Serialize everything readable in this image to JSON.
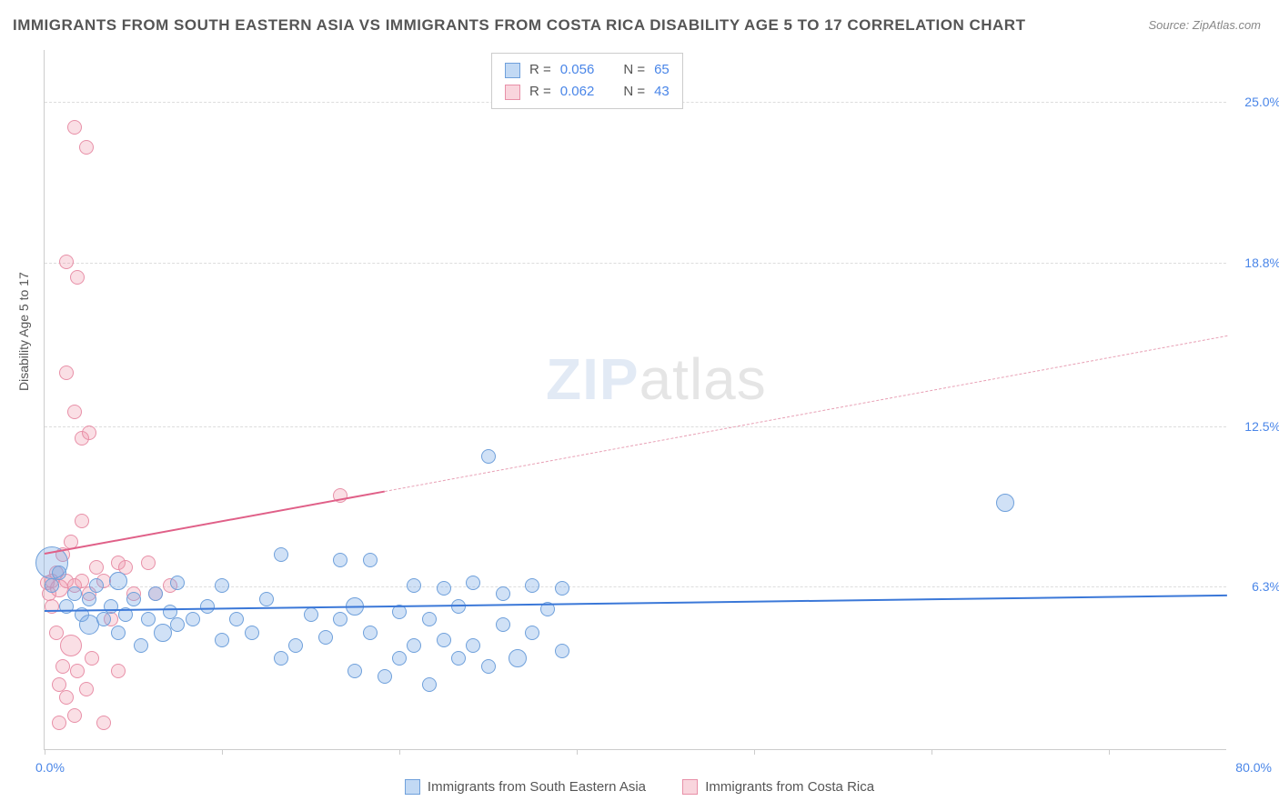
{
  "title": "IMMIGRANTS FROM SOUTH EASTERN ASIA VS IMMIGRANTS FROM COSTA RICA DISABILITY AGE 5 TO 17 CORRELATION CHART",
  "source": "Source: ZipAtlas.com",
  "ylabel": "Disability Age 5 to 17",
  "watermark_a": "ZIP",
  "watermark_b": "atlas",
  "chart": {
    "type": "scatter",
    "xlim": [
      0,
      80
    ],
    "ylim": [
      0,
      27
    ],
    "xlim_labels": [
      "0.0%",
      "80.0%"
    ],
    "ytick_values": [
      6.3,
      12.5,
      18.8,
      25.0
    ],
    "ytick_labels": [
      "6.3%",
      "12.5%",
      "18.8%",
      "25.0%"
    ],
    "xtick_positions": [
      0,
      12,
      24,
      36,
      48,
      60,
      72
    ],
    "background_color": "#ffffff",
    "grid_color": "#dddddd",
    "axis_color": "#cccccc",
    "tick_label_color": "#4a86e8",
    "point_radius": 8,
    "large_point_radius": 18
  },
  "legend_top": {
    "r_label": "R =",
    "n_label": "N =",
    "series_a": {
      "r": "0.056",
      "n": "65"
    },
    "series_b": {
      "r": "0.062",
      "n": "43"
    }
  },
  "legend_bottom": {
    "series_a": "Immigrants from South Eastern Asia",
    "series_b": "Immigrants from Costa Rica"
  },
  "series_a": {
    "color_fill": "rgba(120,170,230,0.35)",
    "color_stroke": "#6fa0db",
    "trend_color": "#3b78d8",
    "trend": {
      "x1": 0,
      "y1": 5.4,
      "x2": 80,
      "y2": 6.0
    },
    "points": [
      {
        "x": 0.5,
        "y": 7.2,
        "r": 18
      },
      {
        "x": 0.5,
        "y": 6.3
      },
      {
        "x": 1,
        "y": 6.8
      },
      {
        "x": 1.5,
        "y": 5.5
      },
      {
        "x": 2,
        "y": 6.0
      },
      {
        "x": 2.5,
        "y": 5.2
      },
      {
        "x": 3,
        "y": 5.8
      },
      {
        "x": 3,
        "y": 4.8,
        "r": 11
      },
      {
        "x": 3.5,
        "y": 6.3
      },
      {
        "x": 4,
        "y": 5.0
      },
      {
        "x": 4.5,
        "y": 5.5
      },
      {
        "x": 5,
        "y": 4.5
      },
      {
        "x": 5,
        "y": 6.5,
        "r": 10
      },
      {
        "x": 5.5,
        "y": 5.2
      },
      {
        "x": 6,
        "y": 5.8
      },
      {
        "x": 6.5,
        "y": 4.0
      },
      {
        "x": 7,
        "y": 5.0
      },
      {
        "x": 7.5,
        "y": 6.0
      },
      {
        "x": 8,
        "y": 4.5,
        "r": 10
      },
      {
        "x": 8.5,
        "y": 5.3
      },
      {
        "x": 9,
        "y": 4.8
      },
      {
        "x": 9,
        "y": 6.4
      },
      {
        "x": 10,
        "y": 5.0
      },
      {
        "x": 11,
        "y": 5.5
      },
      {
        "x": 12,
        "y": 4.2
      },
      {
        "x": 12,
        "y": 6.3
      },
      {
        "x": 13,
        "y": 5.0
      },
      {
        "x": 14,
        "y": 4.5
      },
      {
        "x": 15,
        "y": 5.8
      },
      {
        "x": 16,
        "y": 7.5
      },
      {
        "x": 16,
        "y": 3.5
      },
      {
        "x": 17,
        "y": 4.0
      },
      {
        "x": 18,
        "y": 5.2
      },
      {
        "x": 19,
        "y": 4.3
      },
      {
        "x": 20,
        "y": 7.3
      },
      {
        "x": 20,
        "y": 5.0
      },
      {
        "x": 21,
        "y": 3.0
      },
      {
        "x": 21,
        "y": 5.5,
        "r": 10
      },
      {
        "x": 22,
        "y": 4.5
      },
      {
        "x": 22,
        "y": 7.3
      },
      {
        "x": 23,
        "y": 2.8
      },
      {
        "x": 24,
        "y": 5.3
      },
      {
        "x": 24,
        "y": 3.5
      },
      {
        "x": 25,
        "y": 4.0
      },
      {
        "x": 25,
        "y": 6.3
      },
      {
        "x": 26,
        "y": 2.5
      },
      {
        "x": 26,
        "y": 5.0
      },
      {
        "x": 27,
        "y": 4.2
      },
      {
        "x": 27,
        "y": 6.2
      },
      {
        "x": 28,
        "y": 3.5
      },
      {
        "x": 28,
        "y": 5.5
      },
      {
        "x": 29,
        "y": 6.4
      },
      {
        "x": 29,
        "y": 4.0
      },
      {
        "x": 30,
        "y": 3.2
      },
      {
        "x": 30,
        "y": 11.3
      },
      {
        "x": 31,
        "y": 4.8
      },
      {
        "x": 31,
        "y": 6.0
      },
      {
        "x": 32,
        "y": 3.5,
        "r": 10
      },
      {
        "x": 33,
        "y": 6.3
      },
      {
        "x": 33,
        "y": 4.5
      },
      {
        "x": 34,
        "y": 5.4
      },
      {
        "x": 35,
        "y": 6.2
      },
      {
        "x": 35,
        "y": 3.8
      },
      {
        "x": 65,
        "y": 9.5,
        "r": 10
      }
    ]
  },
  "series_b": {
    "color_fill": "rgba(240,150,170,0.3)",
    "color_stroke": "#e890a8",
    "trend_color": "#e06088",
    "trend_solid": {
      "x1": 0,
      "y1": 7.6,
      "x2": 23,
      "y2": 10.0
    },
    "trend_dash": {
      "x1": 23,
      "y1": 10.0,
      "x2": 80,
      "y2": 16.0
    },
    "points": [
      {
        "x": 0.2,
        "y": 6.4
      },
      {
        "x": 0.3,
        "y": 6.0
      },
      {
        "x": 0.5,
        "y": 6.5
      },
      {
        "x": 0.5,
        "y": 5.5
      },
      {
        "x": 0.8,
        "y": 6.8
      },
      {
        "x": 0.8,
        "y": 4.5
      },
      {
        "x": 1.0,
        "y": 6.2,
        "r": 10
      },
      {
        "x": 1.0,
        "y": 2.5
      },
      {
        "x": 1.0,
        "y": 1.0
      },
      {
        "x": 1.2,
        "y": 7.5
      },
      {
        "x": 1.2,
        "y": 3.2
      },
      {
        "x": 1.5,
        "y": 6.5
      },
      {
        "x": 1.5,
        "y": 2.0
      },
      {
        "x": 1.8,
        "y": 8.0
      },
      {
        "x": 1.8,
        "y": 4.0,
        "r": 12
      },
      {
        "x": 2.0,
        "y": 6.3
      },
      {
        "x": 2.0,
        "y": 1.3
      },
      {
        "x": 2.2,
        "y": 3.0
      },
      {
        "x": 2.5,
        "y": 12.0
      },
      {
        "x": 2.5,
        "y": 6.5
      },
      {
        "x": 2.8,
        "y": 2.3
      },
      {
        "x": 2.0,
        "y": 24.0
      },
      {
        "x": 2.8,
        "y": 23.2
      },
      {
        "x": 3.0,
        "y": 12.2
      },
      {
        "x": 3.0,
        "y": 6.0
      },
      {
        "x": 3.2,
        "y": 3.5
      },
      {
        "x": 1.5,
        "y": 18.8
      },
      {
        "x": 2.2,
        "y": 18.2
      },
      {
        "x": 3.5,
        "y": 7.0
      },
      {
        "x": 1.5,
        "y": 14.5
      },
      {
        "x": 4.0,
        "y": 6.5
      },
      {
        "x": 2.0,
        "y": 13.0
      },
      {
        "x": 4.5,
        "y": 5.0
      },
      {
        "x": 2.5,
        "y": 8.8
      },
      {
        "x": 5.0,
        "y": 7.2
      },
      {
        "x": 5.5,
        "y": 7.0
      },
      {
        "x": 5.0,
        "y": 3.0
      },
      {
        "x": 6.0,
        "y": 6.0
      },
      {
        "x": 7.0,
        "y": 7.2
      },
      {
        "x": 7.5,
        "y": 6.0
      },
      {
        "x": 8.5,
        "y": 6.3
      },
      {
        "x": 20.0,
        "y": 9.8
      },
      {
        "x": 4.0,
        "y": 1.0
      }
    ]
  }
}
